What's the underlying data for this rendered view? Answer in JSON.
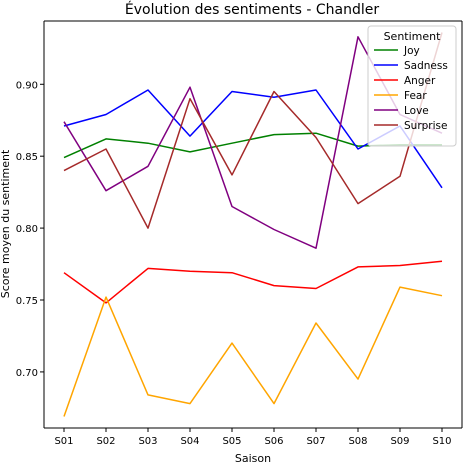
{
  "chart_data": {
    "type": "line",
    "title": "Évolution des sentiments - Chandler",
    "xlabel": "Saison",
    "ylabel": "Score moyen du sentiment",
    "categories": [
      "S01",
      "S02",
      "S03",
      "S04",
      "S05",
      "S06",
      "S07",
      "S08",
      "S09",
      "S10"
    ],
    "ylim": [
      0.661,
      0.944
    ],
    "yticks": [
      "0.70",
      "0.75",
      "0.80",
      "0.85",
      "0.90"
    ],
    "ytick_values": [
      0.7,
      0.75,
      0.8,
      0.85,
      0.9
    ],
    "grid": false,
    "legend": {
      "title": "Sentiment",
      "placement": "top-right"
    },
    "series": [
      {
        "name": "Joy",
        "color": "#008000",
        "values": [
          0.849,
          0.862,
          0.859,
          0.853,
          0.859,
          0.865,
          0.866,
          0.857,
          0.858,
          0.858
        ]
      },
      {
        "name": "Sadness",
        "color": "#0000ff",
        "values": [
          0.871,
          0.879,
          0.896,
          0.864,
          0.895,
          0.891,
          0.896,
          0.855,
          0.871,
          0.828
        ]
      },
      {
        "name": "Anger",
        "color": "#ff0000",
        "values": [
          0.769,
          0.748,
          0.772,
          0.77,
          0.769,
          0.76,
          0.758,
          0.773,
          0.774,
          0.777
        ]
      },
      {
        "name": "Fear",
        "color": "#ffa500",
        "values": [
          0.669,
          0.752,
          0.684,
          0.678,
          0.72,
          0.678,
          0.734,
          0.695,
          0.759,
          0.753
        ]
      },
      {
        "name": "Love",
        "color": "#800080",
        "values": [
          0.874,
          0.826,
          0.843,
          0.898,
          0.815,
          0.799,
          0.786,
          0.933,
          0.879,
          0.866
        ]
      },
      {
        "name": "Surprise",
        "color": "#a52a2a",
        "values": [
          0.84,
          0.855,
          0.8,
          0.89,
          0.837,
          0.895,
          0.863,
          0.817,
          0.836,
          0.936
        ]
      }
    ]
  }
}
